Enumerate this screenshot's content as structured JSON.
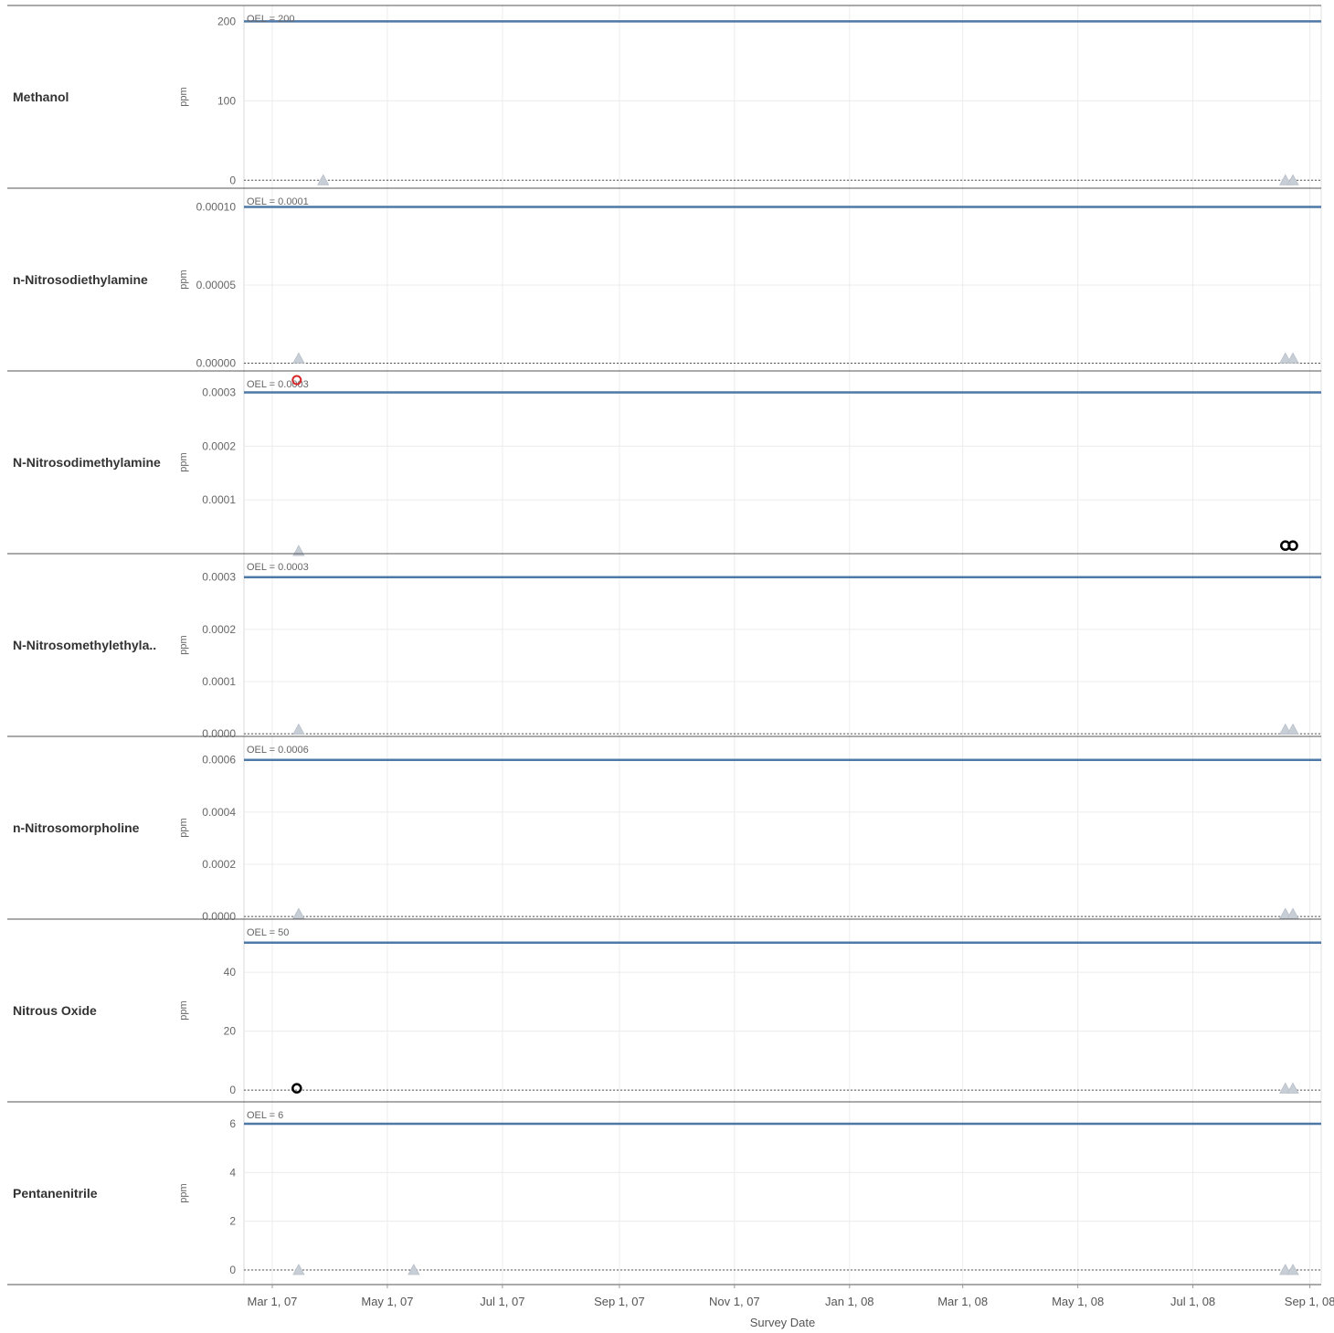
{
  "chart_data": {
    "type": "scatter",
    "x_label": "Survey Date",
    "x_ticks": [
      "Mar 1, 07",
      "May 1, 07",
      "Jul 1, 07",
      "Sep 1, 07",
      "Nov 1, 07",
      "Jan 1, 08",
      "Mar 1, 08",
      "May 1, 08",
      "Jul 1, 08",
      "Sep 1, 08"
    ],
    "x_range": [
      "2007-02-14",
      "2008-09-07"
    ],
    "grid": true,
    "colors": {
      "oel_line": "#4e79a7",
      "nondetect_triangle": "#c8ced6",
      "exceed_circle": "#d62728",
      "detect_circle": "#000000",
      "zero_line": "#555555"
    },
    "panels": [
      {
        "name": "Methanol",
        "y_label": "ppm",
        "ylim": [
          -10,
          220
        ],
        "y_ticks": [
          {
            "v": 200,
            "label": "200"
          },
          {
            "v": 100,
            "label": "100"
          },
          {
            "v": 0,
            "label": "0"
          }
        ],
        "oel": {
          "value": 200,
          "label": "OEL = 200"
        },
        "points": [
          {
            "date": "2007-03-28",
            "value": 0,
            "marker": "triangle"
          },
          {
            "date": "2008-08-19",
            "value": 0,
            "marker": "triangle"
          },
          {
            "date": "2008-08-23",
            "value": 0,
            "marker": "triangle"
          }
        ]
      },
      {
        "name": "n-Nitrosodiethylamine",
        "y_label": "ppm",
        "ylim": [
          -5e-06,
          0.000112
        ],
        "y_ticks": [
          {
            "v": 0.0001,
            "label": "0.00010"
          },
          {
            "v": 5e-05,
            "label": "0.00005"
          },
          {
            "v": 0,
            "label": "0.00000"
          }
        ],
        "oel": {
          "value": 0.0001,
          "label": "OEL = 0.0001"
        },
        "points": [
          {
            "date": "2007-03-15",
            "value": 3e-06,
            "marker": "triangle"
          },
          {
            "date": "2008-08-19",
            "value": 3e-06,
            "marker": "triangle"
          },
          {
            "date": "2008-08-23",
            "value": 3e-06,
            "marker": "triangle"
          }
        ]
      },
      {
        "name": "N-Nitrosodimethylamine",
        "y_label": "ppm",
        "ylim": [
          0,
          0.00034
        ],
        "y_ticks": [
          {
            "v": 0.0003,
            "label": "0.0003"
          },
          {
            "v": 0.0002,
            "label": "0.0002"
          },
          {
            "v": 0.0001,
            "label": "0.0001"
          }
        ],
        "oel": {
          "value": 0.0003,
          "label": "OEL = 0.0003"
        },
        "points": [
          {
            "date": "2007-03-14",
            "value": 0.000323,
            "marker": "circle-red"
          },
          {
            "date": "2007-03-15",
            "value": 5e-06,
            "marker": "triangle"
          },
          {
            "date": "2008-08-19",
            "value": 1.5e-05,
            "marker": "circle-black"
          },
          {
            "date": "2008-08-23",
            "value": 1.5e-05,
            "marker": "circle-black"
          }
        ]
      },
      {
        "name": "N-Nitrosomethylethyla..",
        "y_label": "ppm",
        "ylim": [
          -5e-06,
          0.000345
        ],
        "y_ticks": [
          {
            "v": 0.0003,
            "label": "0.0003"
          },
          {
            "v": 0.0002,
            "label": "0.0002"
          },
          {
            "v": 0.0001,
            "label": "0.0001"
          },
          {
            "v": 0,
            "label": "0.0000"
          }
        ],
        "oel": {
          "value": 0.0003,
          "label": "OEL = 0.0003"
        },
        "points": [
          {
            "date": "2007-03-15",
            "value": 8e-06,
            "marker": "triangle"
          },
          {
            "date": "2008-08-19",
            "value": 8e-06,
            "marker": "triangle"
          },
          {
            "date": "2008-08-23",
            "value": 8e-06,
            "marker": "triangle"
          }
        ]
      },
      {
        "name": "n-Nitrosomorpholine",
        "y_label": "ppm",
        "ylim": [
          -1e-05,
          0.00069
        ],
        "y_ticks": [
          {
            "v": 0.0006,
            "label": "0.0006"
          },
          {
            "v": 0.0004,
            "label": "0.0004"
          },
          {
            "v": 0.0002,
            "label": "0.0002"
          },
          {
            "v": 0,
            "label": "0.0000"
          }
        ],
        "oel": {
          "value": 0.0006,
          "label": "OEL = 0.0006"
        },
        "points": [
          {
            "date": "2007-03-15",
            "value": 1e-05,
            "marker": "triangle"
          },
          {
            "date": "2008-08-19",
            "value": 1e-05,
            "marker": "triangle"
          },
          {
            "date": "2008-08-23",
            "value": 1e-05,
            "marker": "triangle"
          }
        ]
      },
      {
        "name": "Nitrous Oxide",
        "y_label": "ppm",
        "ylim": [
          -4,
          58
        ],
        "y_ticks": [
          {
            "v": 40,
            "label": "40"
          },
          {
            "v": 20,
            "label": "20"
          },
          {
            "v": 0,
            "label": "0"
          }
        ],
        "oel": {
          "value": 50,
          "label": "OEL = 50"
        },
        "points": [
          {
            "date": "2007-03-14",
            "value": 0.6,
            "marker": "circle-black"
          },
          {
            "date": "2008-08-19",
            "value": 0.5,
            "marker": "triangle"
          },
          {
            "date": "2008-08-23",
            "value": 0.5,
            "marker": "triangle"
          }
        ]
      },
      {
        "name": "Pentanenitrile",
        "y_label": "ppm",
        "ylim": [
          -0.6,
          6.9
        ],
        "y_ticks": [
          {
            "v": 6,
            "label": "6"
          },
          {
            "v": 4,
            "label": "4"
          },
          {
            "v": 2,
            "label": "2"
          },
          {
            "v": 0,
            "label": "0"
          }
        ],
        "oel": {
          "value": 6,
          "label": "OEL = 6"
        },
        "points": [
          {
            "date": "2007-03-15",
            "value": 0,
            "marker": "triangle"
          },
          {
            "date": "2007-05-15",
            "value": 0,
            "marker": "triangle"
          },
          {
            "date": "2008-08-19",
            "value": 0,
            "marker": "triangle"
          },
          {
            "date": "2008-08-23",
            "value": 0,
            "marker": "triangle"
          }
        ]
      }
    ]
  }
}
